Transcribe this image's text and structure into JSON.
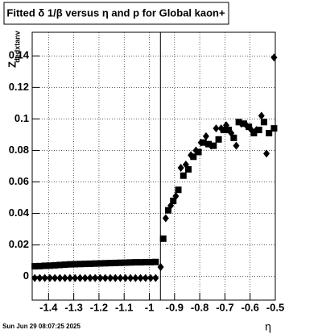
{
  "chart_data": {
    "type": "scatter",
    "title": "Fitted δ 1/β versus η and p for Global kaon+",
    "y_label": "Z",
    "y_label_sub": "dedxtanv",
    "x_label": "η",
    "timestamp": "Sun Jun 29 08:07:25 2025",
    "xlim": [
      -1.465,
      -0.5
    ],
    "ylim": [
      -0.015,
      0.155
    ],
    "xticks": [
      -1.4,
      -1.3,
      -1.2,
      -1.1,
      -1,
      -0.9,
      -0.8,
      -0.7,
      -0.6,
      -0.5
    ],
    "yticks": [
      0,
      0.02,
      0.04,
      0.06,
      0.08,
      0.1,
      0.12,
      0.14
    ],
    "grid": true,
    "vline": -0.956,
    "series": [
      {
        "marker": "square",
        "color": "#000000",
        "x": [
          -1.455,
          -1.435,
          -1.415,
          -1.395,
          -1.375,
          -1.355,
          -1.335,
          -1.315,
          -1.295,
          -1.275,
          -1.255,
          -1.235,
          -1.215,
          -1.195,
          -1.175,
          -1.155,
          -1.135,
          -1.115,
          -1.095,
          -1.075,
          -1.055,
          -1.035,
          -1.015,
          -0.995,
          -0.975,
          -0.945,
          -0.925,
          -0.905,
          -0.885,
          -0.865,
          -0.845,
          -0.825,
          -0.805,
          -0.785,
          -0.765,
          -0.745,
          -0.725,
          -0.705,
          -0.685,
          -0.665,
          -0.645,
          -0.625,
          -0.605,
          -0.585,
          -0.565,
          -0.545,
          -0.525,
          -0.505
        ],
        "values": [
          0.0065,
          0.0066,
          0.0068,
          0.0069,
          0.0071,
          0.0073,
          0.0075,
          0.0077,
          0.0078,
          0.0079,
          0.008,
          0.0081,
          0.0082,
          0.0083,
          0.0084,
          0.0085,
          0.0086,
          0.0087,
          0.0088,
          0.0089,
          0.009,
          0.009,
          0.0091,
          0.0091,
          0.0092,
          0.024,
          0.042,
          0.048,
          0.055,
          0.064,
          0.068,
          0.076,
          0.079,
          0.085,
          0.084,
          0.083,
          0.087,
          0.093,
          0.093,
          0.088,
          0.098,
          0.097,
          0.095,
          0.091,
          0.093,
          0.098,
          0.091,
          0.094
        ]
      },
      {
        "marker": "diamond",
        "color": "#000000",
        "x": [
          -1.455,
          -1.435,
          -1.415,
          -1.395,
          -1.375,
          -1.355,
          -1.335,
          -1.315,
          -1.295,
          -1.275,
          -1.255,
          -1.235,
          -1.215,
          -1.195,
          -1.175,
          -1.155,
          -1.135,
          -1.115,
          -1.095,
          -1.075,
          -1.055,
          -1.035,
          -1.015,
          -0.995,
          -0.975,
          -0.955,
          -0.935,
          -0.915,
          -0.895,
          -0.875,
          -0.855,
          -0.835,
          -0.815,
          -0.795,
          -0.775,
          -0.755,
          -0.735,
          -0.715,
          -0.695,
          -0.675,
          -0.655,
          -0.635,
          -0.615,
          -0.595,
          -0.575,
          -0.555,
          -0.535,
          -0.505
        ],
        "values": [
          -0.001,
          -0.001,
          -0.001,
          -0.001,
          -0.001,
          -0.001,
          -0.001,
          -0.001,
          -0.001,
          -0.001,
          -0.001,
          -0.001,
          -0.001,
          -0.001,
          -0.001,
          -0.001,
          -0.001,
          -0.001,
          -0.001,
          -0.001,
          -0.001,
          -0.001,
          -0.001,
          -0.001,
          -0.001,
          0.006,
          0.037,
          0.045,
          0.051,
          0.069,
          0.071,
          0.077,
          0.08,
          0.085,
          0.089,
          0.083,
          0.094,
          0.094,
          0.096,
          0.091,
          0.083,
          0.097,
          0.096,
          0.093,
          0.093,
          0.102,
          0.078,
          0.139
        ]
      }
    ]
  }
}
